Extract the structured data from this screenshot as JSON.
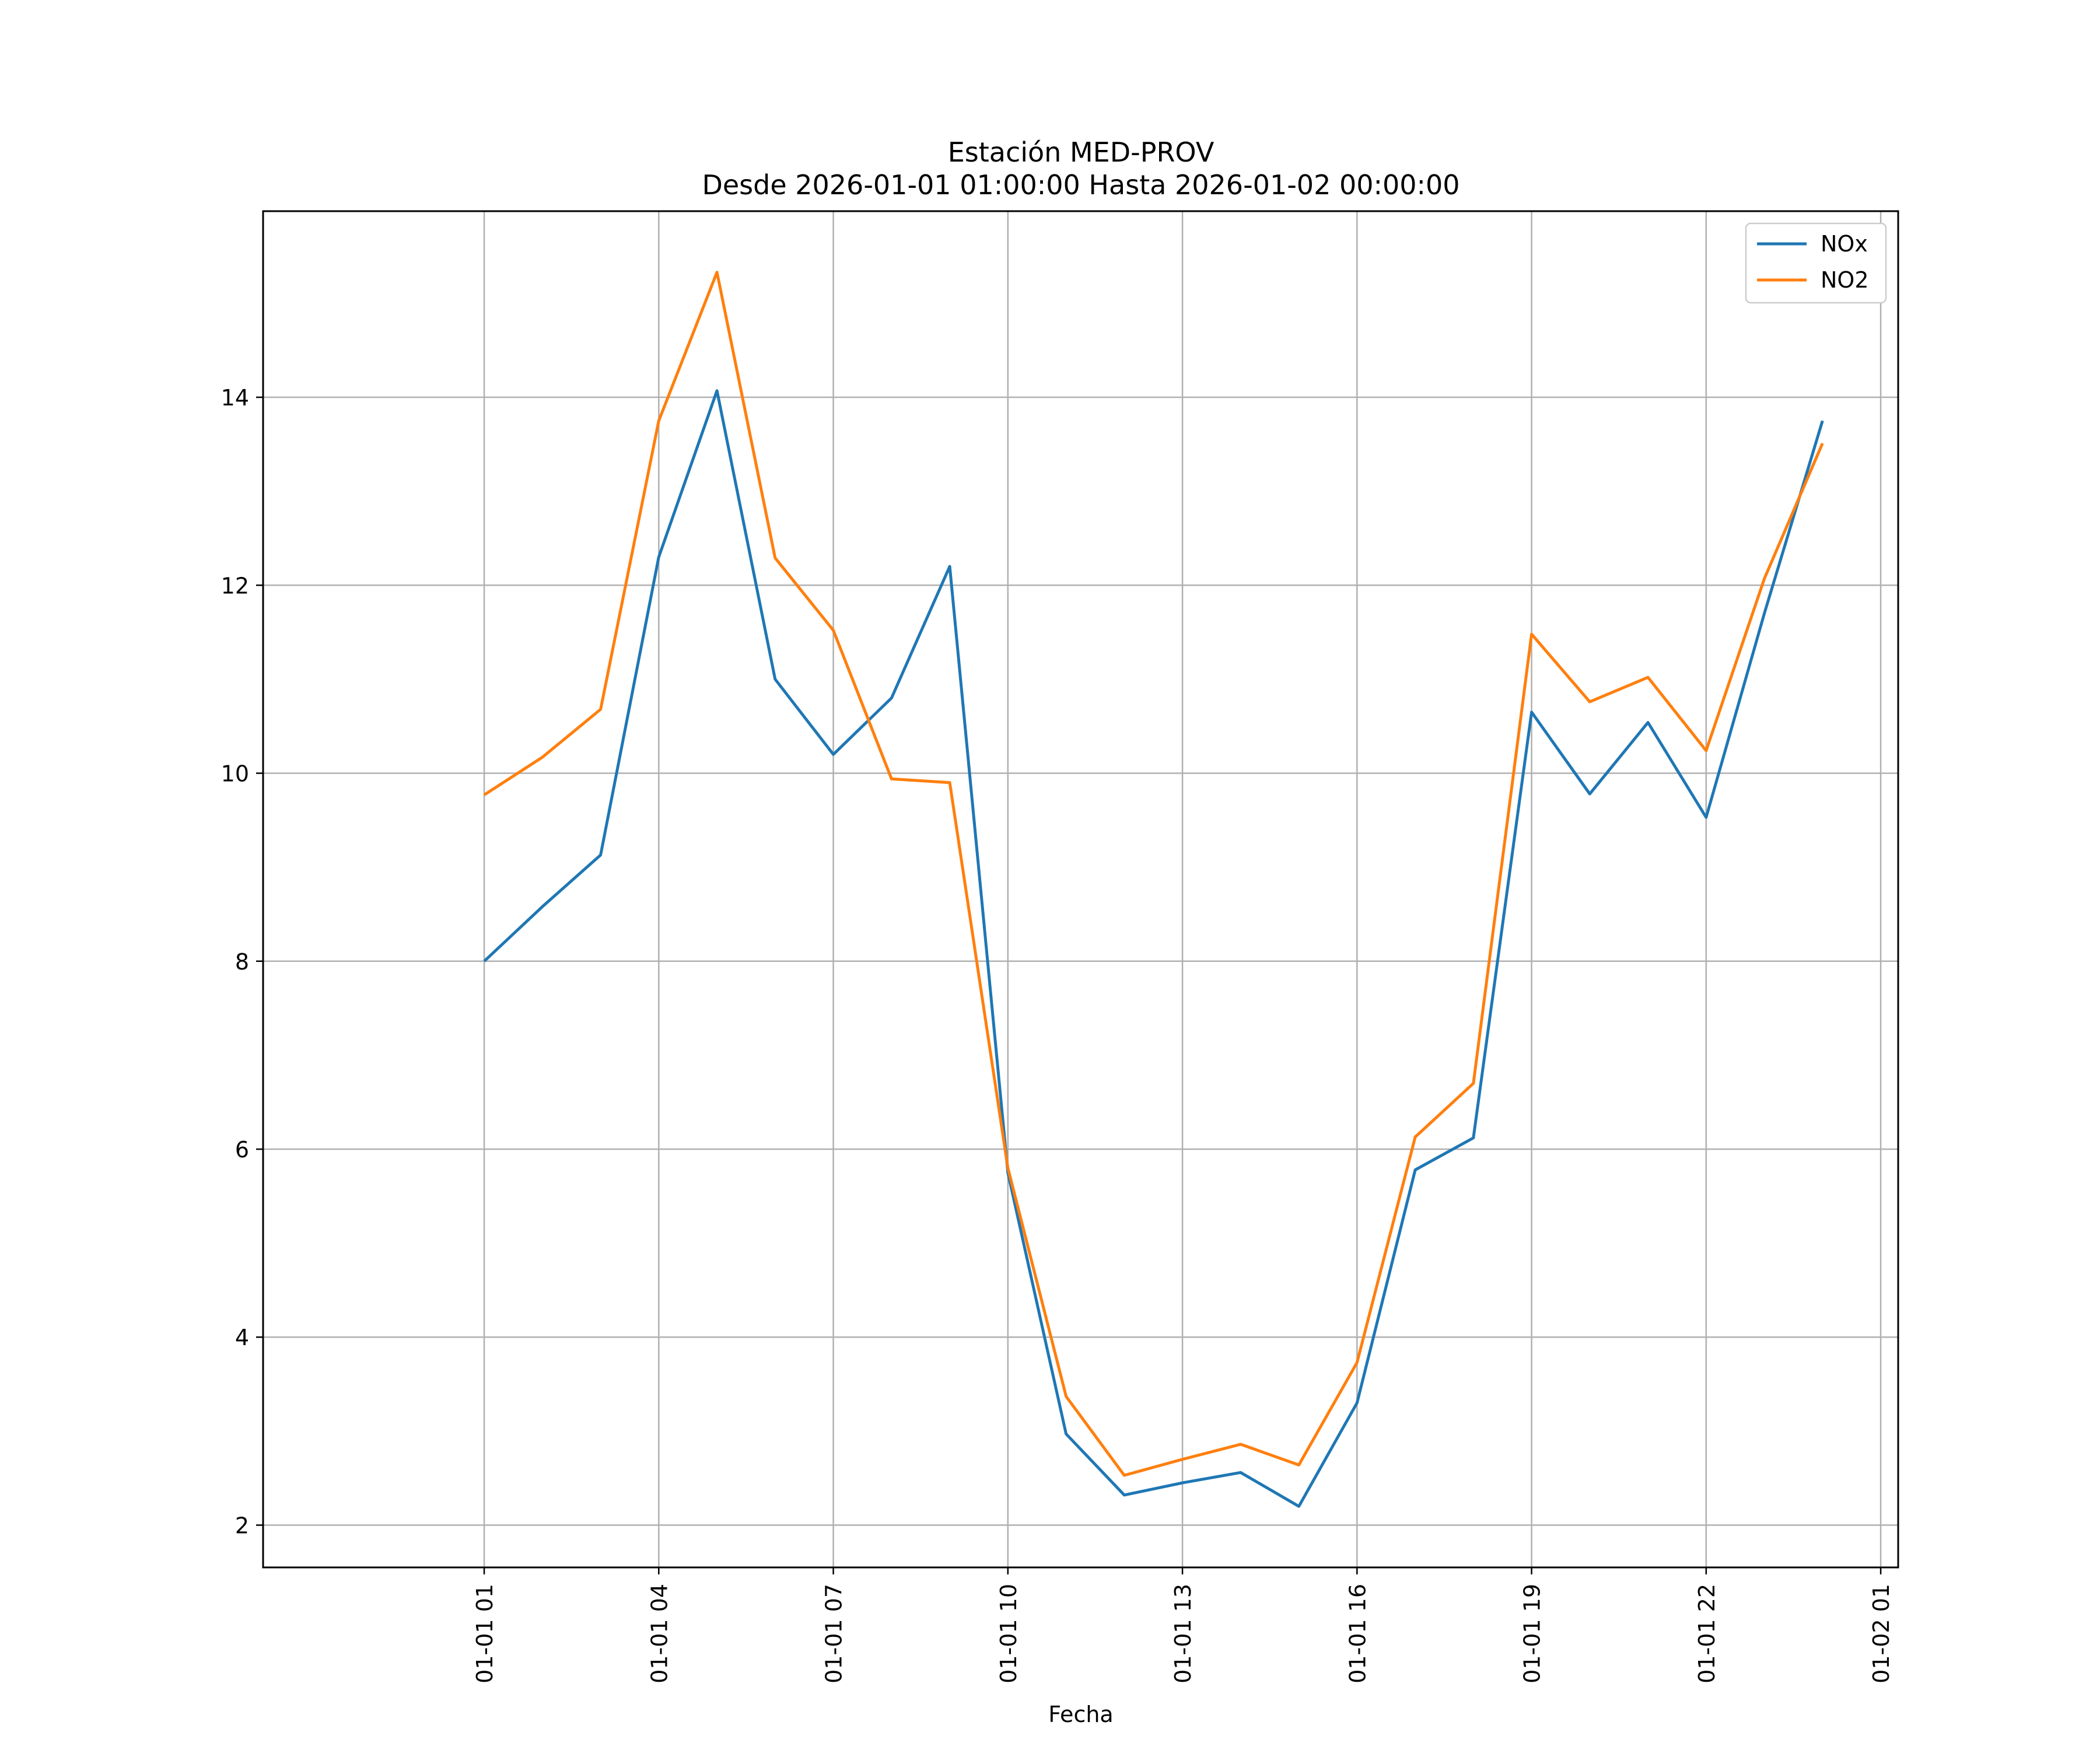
{
  "chart_data": {
    "type": "line",
    "title_line1": "Estación MED-PROV",
    "title_line2": "Desde 2026-01-01 01:00:00 Hasta 2026-01-02 00:00:00",
    "xlabel": "Fecha",
    "ylabel": "",
    "x_unit": "hours since 2026-01-01 00:00",
    "xlim": [
      -2.8,
      25.3
    ],
    "ylim": [
      1.55,
      15.98
    ],
    "grid": true,
    "legend_position": "top-right",
    "x_ticks": [
      {
        "value": 1,
        "label": "01-01 01"
      },
      {
        "value": 4,
        "label": "01-01 04"
      },
      {
        "value": 7,
        "label": "01-01 07"
      },
      {
        "value": 10,
        "label": "01-01 10"
      },
      {
        "value": 13,
        "label": "01-01 13"
      },
      {
        "value": 16,
        "label": "01-01 16"
      },
      {
        "value": 19,
        "label": "01-01 19"
      },
      {
        "value": 22,
        "label": "01-01 22"
      },
      {
        "value": 25,
        "label": "01-02 01"
      }
    ],
    "y_ticks": [
      {
        "value": 2,
        "label": "2"
      },
      {
        "value": 4,
        "label": "4"
      },
      {
        "value": 6,
        "label": "6"
      },
      {
        "value": 8,
        "label": "8"
      },
      {
        "value": 10,
        "label": "10"
      },
      {
        "value": 12,
        "label": "12"
      },
      {
        "value": 14,
        "label": "14"
      }
    ],
    "x": [
      1,
      2,
      3,
      4,
      5,
      6,
      7,
      8,
      9,
      10,
      11,
      12,
      13,
      14,
      15,
      16,
      17,
      18,
      19,
      20,
      21,
      22,
      23,
      24
    ],
    "series": [
      {
        "name": "NOx",
        "color": "#1f77b4",
        "values": [
          8.0,
          8.58,
          9.13,
          12.3,
          14.07,
          11.0,
          10.2,
          10.8,
          12.2,
          5.75,
          2.97,
          2.32,
          2.45,
          2.56,
          2.2,
          3.3,
          5.78,
          6.12,
          10.65,
          9.78,
          10.54,
          9.53,
          11.7,
          13.75
        ]
      },
      {
        "name": "NO2",
        "color": "#ff7f0e",
        "values": [
          9.77,
          10.17,
          10.68,
          13.75,
          15.33,
          12.29,
          11.52,
          9.94,
          9.9,
          5.8,
          3.37,
          2.53,
          2.7,
          2.86,
          2.64,
          3.73,
          6.13,
          6.7,
          11.48,
          10.76,
          11.02,
          10.24,
          12.07,
          13.51
        ]
      }
    ]
  }
}
